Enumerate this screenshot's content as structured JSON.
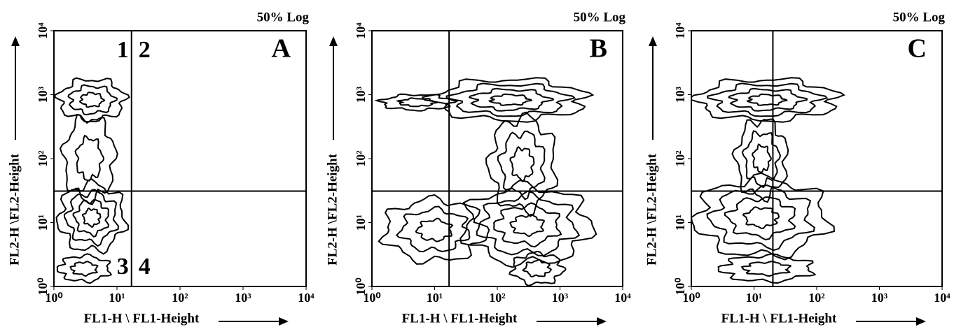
{
  "chart_data": [
    {
      "type": "contour",
      "title": "50% Log",
      "panel_label": "A",
      "xlabel": "FL1-H \\ FL1-Height",
      "ylabel": "FL2-H \\FL2-Height",
      "xlim": [
        1,
        10000
      ],
      "ylim": [
        1,
        10000
      ],
      "log_x": true,
      "log_y": true,
      "xticks": [
        {
          "value": 1,
          "label": "10⁰"
        },
        {
          "value": 10,
          "label": "10¹"
        },
        {
          "value": 100,
          "label": "10²"
        },
        {
          "value": 1000,
          "label": "10³"
        },
        {
          "value": 10000,
          "label": "10⁴"
        }
      ],
      "yticks": [
        {
          "value": 1,
          "label": "10⁰"
        },
        {
          "value": 10,
          "label": "10¹"
        },
        {
          "value": 100,
          "label": "10²"
        },
        {
          "value": 1000,
          "label": "10³"
        },
        {
          "value": 10000,
          "label": "10⁴"
        }
      ],
      "quadrant_x": 17,
      "quadrant_y": 31,
      "quadrant_labels": [
        "1",
        "2",
        "3",
        "4"
      ]
    },
    {
      "type": "contour",
      "title": "50% Log",
      "panel_label": "B",
      "xlabel": "FL1-H \\ FL1-Height",
      "ylabel": "FL2-H \\FL2-Height",
      "xlim": [
        1,
        10000
      ],
      "ylim": [
        1,
        10000
      ],
      "log_x": true,
      "log_y": true,
      "xticks": [
        {
          "value": 1,
          "label": "10⁰"
        },
        {
          "value": 10,
          "label": "10¹"
        },
        {
          "value": 100,
          "label": "10²"
        },
        {
          "value": 1000,
          "label": "10³"
        },
        {
          "value": 10000,
          "label": "10⁴"
        }
      ],
      "yticks": [
        {
          "value": 1,
          "label": "10⁰"
        },
        {
          "value": 10,
          "label": "10¹"
        },
        {
          "value": 100,
          "label": "10²"
        },
        {
          "value": 1000,
          "label": "10³"
        },
        {
          "value": 10000,
          "label": "10⁴"
        }
      ],
      "quadrant_x": 17,
      "quadrant_y": 31
    },
    {
      "type": "contour",
      "title": "50% Log",
      "panel_label": "C",
      "xlabel": "FL1-H \\ FL1-Height",
      "ylabel": "FL2-H \\FL2-Height",
      "xlim": [
        1,
        10000
      ],
      "ylim": [
        1,
        10000
      ],
      "log_x": true,
      "log_y": true,
      "xticks": [
        {
          "value": 1,
          "label": "10⁰"
        },
        {
          "value": 10,
          "label": "10¹"
        },
        {
          "value": 100,
          "label": "10²"
        },
        {
          "value": 1000,
          "label": "10³"
        },
        {
          "value": 10000,
          "label": "10⁴"
        }
      ],
      "yticks": [
        {
          "value": 1,
          "label": "10⁰"
        },
        {
          "value": 10,
          "label": "10¹"
        },
        {
          "value": 100,
          "label": "10²"
        },
        {
          "value": 1000,
          "label": "10³"
        },
        {
          "value": 10000,
          "label": "10⁴"
        }
      ],
      "quadrant_x": 20,
      "quadrant_y": 31
    }
  ]
}
